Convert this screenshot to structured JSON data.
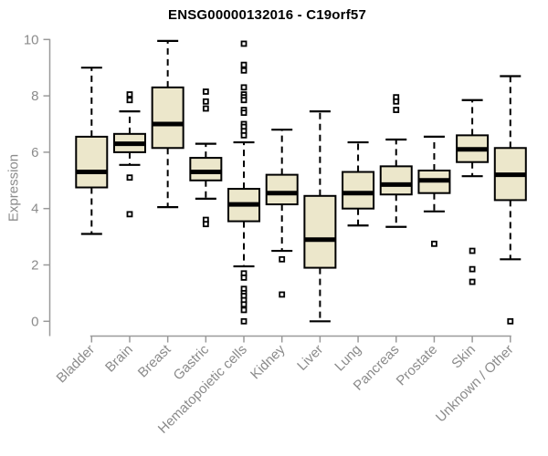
{
  "colors": {
    "box_fill": "#ECE7CB",
    "box_border": "#000000",
    "median": "#000000",
    "whisker": "#000000",
    "outlier_stroke": "#000000",
    "outlier_fill": "#ffffff",
    "axis_line": "#9a9a9a",
    "tick_label": "#8b8b8b",
    "title": "#000000"
  },
  "chart_data": {
    "type": "boxplot",
    "title": "ENSG00000132016 - C19orf57",
    "xlabel": "",
    "ylabel": "Expression",
    "ylim": [
      0,
      10
    ],
    "yticks": [
      0,
      2,
      4,
      6,
      8,
      10
    ],
    "grid": "off",
    "legend": "none",
    "categories": [
      "Bladder",
      "Brain",
      "Breast",
      "Gastric",
      "Hematopoietic cells",
      "Kidney",
      "Liver",
      "Lung",
      "Pancreas",
      "Prostate",
      "Skin",
      "Unknown / Other"
    ],
    "series": [
      {
        "name": "Bladder",
        "whisker_low": 3.1,
        "q1": 4.75,
        "median": 5.3,
        "q3": 6.55,
        "whisker_high": 9.0,
        "outliers": []
      },
      {
        "name": "Brain",
        "whisker_low": 5.55,
        "q1": 6.0,
        "median": 6.3,
        "q3": 6.65,
        "whisker_high": 7.45,
        "outliers": [
          8.05,
          7.85,
          5.1,
          3.8
        ]
      },
      {
        "name": "Breast",
        "whisker_low": 4.05,
        "q1": 6.15,
        "median": 7.0,
        "q3": 8.3,
        "whisker_high": 9.95,
        "outliers": []
      },
      {
        "name": "Gastric",
        "whisker_low": 4.35,
        "q1": 5.0,
        "median": 5.3,
        "q3": 5.8,
        "whisker_high": 6.3,
        "outliers": [
          8.15,
          7.8,
          7.55,
          3.6,
          3.45
        ]
      },
      {
        "name": "Hematopoietic cells",
        "whisker_low": 1.95,
        "q1": 3.55,
        "median": 4.15,
        "q3": 4.7,
        "whisker_high": 6.35,
        "outliers": [
          9.85,
          9.1,
          8.9,
          8.3,
          8.05,
          7.95,
          7.85,
          7.5,
          7.4,
          7.0,
          6.9,
          6.75,
          6.6,
          1.7,
          1.55,
          1.15,
          1.0,
          0.9,
          0.75,
          0.6,
          0.4,
          0.0
        ]
      },
      {
        "name": "Kidney",
        "whisker_low": 2.5,
        "q1": 4.15,
        "median": 4.55,
        "q3": 5.2,
        "whisker_high": 6.8,
        "outliers": [
          2.2,
          0.95
        ]
      },
      {
        "name": "Liver",
        "whisker_low": 0.0,
        "q1": 1.9,
        "median": 2.9,
        "q3": 4.45,
        "whisker_high": 7.45,
        "outliers": []
      },
      {
        "name": "Lung",
        "whisker_low": 3.4,
        "q1": 4.0,
        "median": 4.55,
        "q3": 5.3,
        "whisker_high": 6.35,
        "outliers": []
      },
      {
        "name": "Pancreas",
        "whisker_low": 3.35,
        "q1": 4.5,
        "median": 4.85,
        "q3": 5.5,
        "whisker_high": 6.45,
        "outliers": [
          7.95,
          7.8,
          7.5
        ]
      },
      {
        "name": "Prostate",
        "whisker_low": 3.9,
        "q1": 4.55,
        "median": 5.0,
        "q3": 5.35,
        "whisker_high": 6.55,
        "outliers": [
          2.75
        ]
      },
      {
        "name": "Skin",
        "whisker_low": 5.15,
        "q1": 5.65,
        "median": 6.1,
        "q3": 6.6,
        "whisker_high": 7.85,
        "outliers": [
          2.5,
          1.85,
          1.4
        ]
      },
      {
        "name": "Unknown / Other",
        "whisker_low": 2.2,
        "q1": 4.3,
        "median": 5.2,
        "q3": 6.15,
        "whisker_high": 8.7,
        "outliers": [
          0.0
        ]
      }
    ]
  }
}
